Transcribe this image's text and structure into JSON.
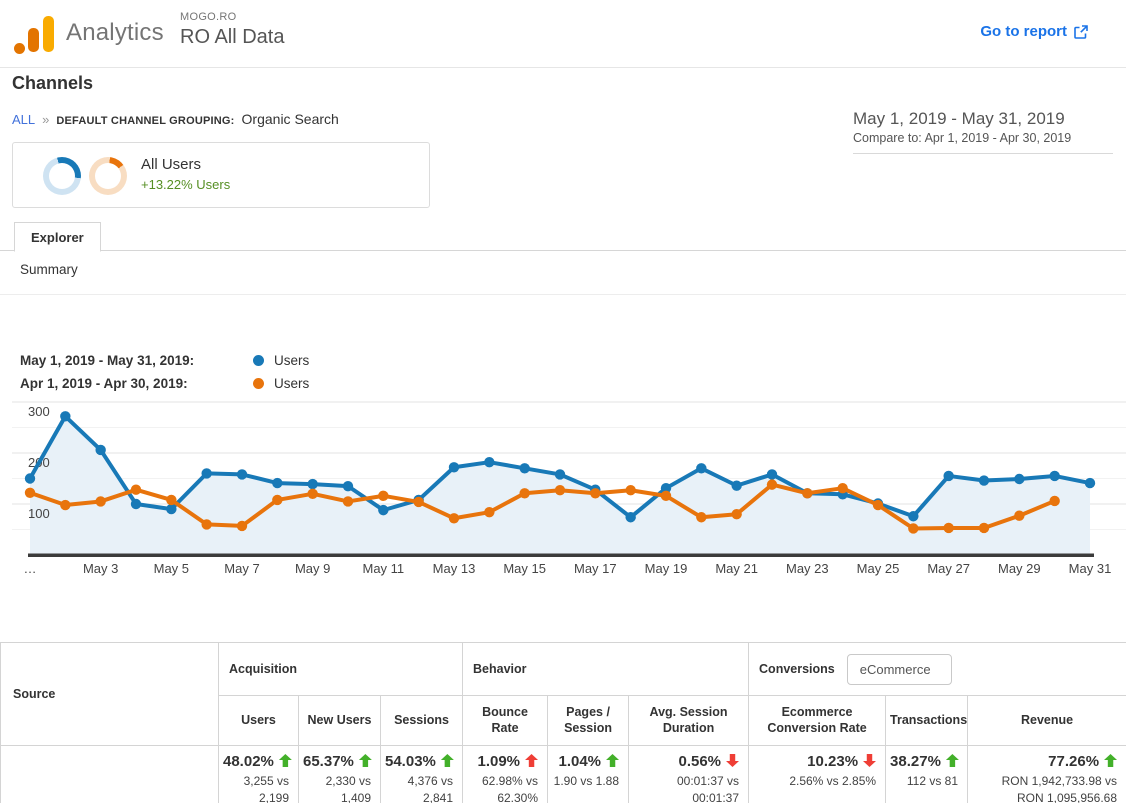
{
  "colors": {
    "chart_blue": "#1879b7",
    "chart_orange": "#e8740c",
    "area_fill": "#e8f1f8",
    "good_green": "#43b02a",
    "bad_red": "#ef3e36",
    "delta_green": "#568f24",
    "link_blue": "#1a73e8"
  },
  "header": {
    "brand": "Analytics",
    "account": "MOGO.RO",
    "property": "RO All Data",
    "go_to_report": "Go to report"
  },
  "page": {
    "title": "Channels"
  },
  "breadcrumb": {
    "all": "ALL",
    "separator": "»",
    "label": "DEFAULT CHANNEL GROUPING:",
    "value": "Organic Search"
  },
  "date_range": {
    "primary": "May 1, 2019 - May 31, 2019",
    "compare": "Compare to: Apr 1, 2019 - Apr 30, 2019"
  },
  "segment_card": {
    "title": "All Users",
    "delta": "+13.22% Users"
  },
  "tabs": {
    "explorer": "Explorer",
    "summary": "Summary"
  },
  "chart_data": {
    "type": "line",
    "title": "Users by day — May 1, 2019 - May 31, 2019 vs Apr 1, 2019 - Apr 30, 2019",
    "xlabel": "",
    "ylabel": "Users",
    "ylim": [
      0,
      300
    ],
    "y_ticks": [
      100,
      200,
      300
    ],
    "grid": true,
    "legend_position": "top-left",
    "legend": [
      {
        "label": "May 1, 2019 - May 31, 2019:",
        "series": "Users",
        "color": "#1879b7"
      },
      {
        "label": "Apr 1, 2019 - Apr 30, 2019:",
        "series": "Users",
        "color": "#e8740c"
      }
    ],
    "x_tick_labels": [
      "…",
      "May 3",
      "May 5",
      "May 7",
      "May 9",
      "May 11",
      "May 13",
      "May 15",
      "May 17",
      "May 19",
      "May 21",
      "May 23",
      "May 25",
      "May 27",
      "May 29",
      "May 31"
    ],
    "series": [
      {
        "name": "Users (May 1, 2019 - May 31, 2019)",
        "color": "#1879b7",
        "fill_area": true,
        "values": [
          150,
          272,
          206,
          100,
          90,
          160,
          158,
          141,
          139,
          135,
          88,
          108,
          172,
          182,
          170,
          158,
          128,
          74,
          131,
          170,
          136,
          158,
          121,
          119,
          101,
          76,
          155,
          146,
          149,
          155,
          141
        ]
      },
      {
        "name": "Users (Apr 1, 2019 - Apr 30, 2019)",
        "color": "#e8740c",
        "fill_area": false,
        "values": [
          122,
          98,
          105,
          128,
          108,
          60,
          57,
          108,
          120,
          105,
          116,
          104,
          72,
          84,
          121,
          127,
          121,
          127,
          116,
          74,
          80,
          138,
          121,
          131,
          98,
          52,
          53,
          53,
          77,
          106
        ]
      }
    ]
  },
  "table": {
    "source_header": "Source",
    "groups": [
      {
        "label": "Acquisition",
        "span": 3
      },
      {
        "label": "Behavior",
        "span": 3
      },
      {
        "label": "Conversions",
        "span": 3,
        "selector": "eCommerce"
      }
    ],
    "columns": [
      "Users",
      "New Users",
      "Sessions",
      "Bounce Rate",
      "Pages / Session",
      "Avg. Session Duration",
      "Ecommerce Conversion Rate",
      "Transactions",
      "Revenue"
    ],
    "row": {
      "source": "",
      "metrics": [
        {
          "pct": "48.02%",
          "dir": "up",
          "good": true,
          "detail": "3,255 vs\n2,199"
        },
        {
          "pct": "65.37%",
          "dir": "up",
          "good": true,
          "detail": "2,330 vs\n1,409"
        },
        {
          "pct": "54.03%",
          "dir": "up",
          "good": true,
          "detail": "4,376 vs\n2,841"
        },
        {
          "pct": "1.09%",
          "dir": "up",
          "good": false,
          "detail": "62.98% vs\n62.30%"
        },
        {
          "pct": "1.04%",
          "dir": "up",
          "good": true,
          "detail": "1.90 vs 1.88"
        },
        {
          "pct": "0.56%",
          "dir": "down",
          "good": false,
          "detail": "00:01:37 vs\n00:01:37"
        },
        {
          "pct": "10.23%",
          "dir": "down",
          "good": false,
          "detail": "2.56% vs 2.85%"
        },
        {
          "pct": "38.27%",
          "dir": "up",
          "good": true,
          "detail": "112 vs 81"
        },
        {
          "pct": "77.26%",
          "dir": "up",
          "good": true,
          "detail": "RON 1,942,733.98 vs\nRON 1,095,956.68"
        }
      ]
    }
  }
}
